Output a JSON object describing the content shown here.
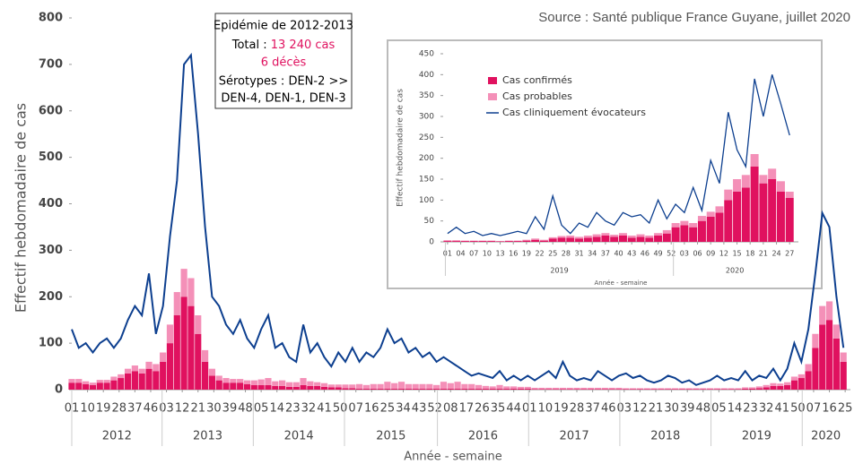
{
  "chart_data": [
    {
      "type": "stacked-bar-line",
      "source": "Source : Santé publique France Guyane, juillet 2020",
      "ylabel": "Effectif hebdomadaire de cas",
      "xlabel": "Année - semaine",
      "annotation": {
        "title": "Epidémie de 2012-2013",
        "total_label": "Total : ",
        "total": "13 240 cas",
        "deaths": "6 décès",
        "serotypes_1": "Sérotypes : DEN-2 >>",
        "serotypes_2": "DEN-4, DEN-1, DEN-3"
      },
      "years": [
        "2012",
        "2013",
        "2014",
        "2015",
        "2016",
        "2017",
        "2018",
        "2019",
        "2020"
      ],
      "x": [
        0,
        4,
        8,
        12,
        16,
        20,
        24,
        28,
        32,
        36,
        40,
        44,
        48,
        52,
        56,
        60,
        64,
        68,
        72,
        76,
        80,
        84,
        88,
        92,
        96,
        100,
        104,
        108,
        112,
        116,
        120,
        124,
        128,
        132,
        136,
        140,
        144,
        148,
        152,
        156,
        160,
        164,
        168,
        172,
        176,
        180,
        184,
        188,
        192,
        196,
        200,
        204,
        208,
        212,
        216,
        220,
        224,
        228,
        232,
        236,
        240,
        244,
        248,
        252,
        256,
        260,
        264,
        268,
        272,
        276,
        280,
        284,
        288,
        292,
        296,
        300,
        304,
        308,
        312,
        316,
        320,
        324,
        328,
        332,
        336,
        340,
        344,
        348,
        352,
        356,
        360,
        364,
        368,
        372,
        376,
        380,
        384,
        388,
        392,
        396,
        400,
        404,
        408,
        412,
        416,
        420,
        424,
        428,
        432,
        436,
        440
      ],
      "series": [
        {
          "color": "#e0115f",
          "kind": "bar",
          "values": [
            15,
            15,
            12,
            10,
            15,
            15,
            20,
            25,
            35,
            40,
            35,
            45,
            40,
            60,
            100,
            160,
            200,
            180,
            120,
            60,
            30,
            20,
            15,
            15,
            15,
            12,
            10,
            10,
            10,
            8,
            8,
            6,
            6,
            10,
            8,
            8,
            6,
            5,
            5,
            3,
            3,
            2,
            2,
            2,
            2,
            2,
            2,
            2,
            2,
            2,
            2,
            2,
            2,
            2,
            2,
            2,
            2,
            2,
            2,
            2,
            2,
            2,
            2,
            2,
            2,
            2,
            1,
            1,
            1,
            1,
            1,
            1,
            1,
            1,
            1,
            1,
            1,
            1,
            1,
            1,
            1,
            1,
            1,
            1,
            1,
            1,
            1,
            1,
            1,
            1,
            1,
            1,
            1,
            1,
            1,
            1,
            2,
            2,
            3,
            5,
            8,
            8,
            10,
            20,
            25,
            40,
            90,
            140,
            150,
            110,
            60
          ]
        },
        {
          "color": "#f490b8",
          "kind": "bar",
          "values": [
            8,
            8,
            6,
            5,
            6,
            6,
            8,
            8,
            10,
            12,
            10,
            15,
            15,
            20,
            40,
            50,
            60,
            60,
            40,
            25,
            15,
            10,
            10,
            8,
            8,
            8,
            10,
            12,
            15,
            10,
            12,
            10,
            10,
            15,
            10,
            8,
            8,
            6,
            6,
            8,
            8,
            10,
            8,
            10,
            10,
            15,
            12,
            15,
            10,
            10,
            10,
            10,
            8,
            15,
            12,
            15,
            10,
            10,
            8,
            6,
            5,
            8,
            5,
            5,
            4,
            4,
            3,
            3,
            3,
            3,
            3,
            3,
            3,
            3,
            3,
            3,
            3,
            3,
            3,
            2,
            2,
            2,
            2,
            2,
            2,
            2,
            2,
            2,
            2,
            2,
            2,
            2,
            2,
            2,
            2,
            2,
            3,
            3,
            4,
            5,
            6,
            5,
            6,
            8,
            8,
            15,
            30,
            40,
            40,
            30,
            20
          ]
        },
        {
          "color": "#0d3f8f",
          "kind": "line",
          "values": [
            130,
            90,
            100,
            80,
            100,
            110,
            90,
            110,
            150,
            180,
            160,
            250,
            120,
            180,
            330,
            450,
            700,
            720,
            550,
            350,
            200,
            180,
            140,
            120,
            150,
            110,
            90,
            130,
            160,
            90,
            100,
            70,
            60,
            140,
            80,
            100,
            70,
            50,
            80,
            60,
            90,
            60,
            80,
            70,
            90,
            130,
            100,
            110,
            80,
            90,
            70,
            80,
            60,
            70,
            60,
            50,
            40,
            30,
            35,
            30,
            25,
            40,
            20,
            30,
            20,
            30,
            20,
            30,
            40,
            25,
            60,
            30,
            20,
            25,
            20,
            40,
            30,
            20,
            30,
            35,
            25,
            30,
            20,
            15,
            20,
            30,
            25,
            15,
            20,
            10,
            15,
            20,
            30,
            20,
            25,
            20,
            40,
            20,
            30,
            25,
            45,
            20,
            45,
            100,
            60,
            130,
            250,
            380,
            350,
            200,
            90
          ]
        }
      ],
      "xlim": [
        0,
        444
      ],
      "ylim": [
        0,
        800
      ],
      "yticks": [
        0,
        100,
        200,
        300,
        400,
        500,
        600,
        700,
        800
      ],
      "xticks": [
        {
          "value": 0,
          "label": "01"
        },
        {
          "value": 9,
          "label": "10"
        },
        {
          "value": 18,
          "label": "19"
        },
        {
          "value": 27,
          "label": "28"
        },
        {
          "value": 36,
          "label": "37"
        },
        {
          "value": 45,
          "label": "46"
        },
        {
          "value": 54,
          "label": "03"
        },
        {
          "value": 63,
          "label": "12"
        },
        {
          "value": 72,
          "label": "21"
        },
        {
          "value": 81,
          "label": "30"
        },
        {
          "value": 90,
          "label": "39"
        },
        {
          "value": 99,
          "label": "48"
        },
        {
          "value": 108,
          "label": "05"
        },
        {
          "value": 117,
          "label": "14"
        },
        {
          "value": 126,
          "label": "23"
        },
        {
          "value": 135,
          "label": "32"
        },
        {
          "value": 144,
          "label": "41"
        },
        {
          "value": 153,
          "label": "50"
        },
        {
          "value": 162,
          "label": "07"
        },
        {
          "value": 171,
          "label": "16"
        },
        {
          "value": 180,
          "label": "25"
        },
        {
          "value": 189,
          "label": "34"
        },
        {
          "value": 198,
          "label": "43"
        },
        {
          "value": 207,
          "label": "52"
        },
        {
          "value": 216,
          "label": "08"
        },
        {
          "value": 225,
          "label": "17"
        },
        {
          "value": 234,
          "label": "26"
        },
        {
          "value": 243,
          "label": "35"
        },
        {
          "value": 252,
          "label": "44"
        },
        {
          "value": 261,
          "label": "01"
        },
        {
          "value": 270,
          "label": "10"
        },
        {
          "value": 279,
          "label": "19"
        },
        {
          "value": 288,
          "label": "28"
        },
        {
          "value": 297,
          "label": "37"
        },
        {
          "value": 306,
          "label": "46"
        },
        {
          "value": 315,
          "label": "03"
        },
        {
          "value": 324,
          "label": "12"
        },
        {
          "value": 333,
          "label": "21"
        },
        {
          "value": 342,
          "label": "30"
        },
        {
          "value": 351,
          "label": "39"
        },
        {
          "value": 360,
          "label": "48"
        },
        {
          "value": 369,
          "label": "05"
        },
        {
          "value": 378,
          "label": "14"
        },
        {
          "value": 387,
          "label": "23"
        },
        {
          "value": 396,
          "label": "32"
        },
        {
          "value": 405,
          "label": "41"
        },
        {
          "value": 414,
          "label": "50"
        },
        {
          "value": 423,
          "label": "07"
        },
        {
          "value": 432,
          "label": "16"
        },
        {
          "value": 441,
          "label": "25"
        }
      ]
    },
    {
      "type": "stacked-bar-line",
      "ylabel": "Effectif hebdomadaire de cas",
      "xlabel": "Année - semaine",
      "years": [
        "2019",
        "2020"
      ],
      "legend": "top-left",
      "x": [
        0,
        2,
        4,
        6,
        8,
        10,
        12,
        14,
        16,
        18,
        20,
        22,
        24,
        26,
        28,
        30,
        32,
        34,
        36,
        38,
        40,
        42,
        44,
        46,
        48,
        50,
        52,
        54,
        56,
        58,
        60,
        62,
        64,
        66,
        68,
        70,
        72,
        74,
        76,
        78
      ],
      "series": [
        {
          "name": "Cas confirmés",
          "color": "#e0115f",
          "kind": "bar",
          "values": [
            2,
            2,
            2,
            2,
            2,
            2,
            1,
            2,
            2,
            3,
            5,
            3,
            8,
            10,
            10,
            8,
            10,
            12,
            15,
            12,
            15,
            10,
            12,
            10,
            15,
            20,
            35,
            40,
            35,
            50,
            60,
            70,
            100,
            120,
            130,
            180,
            140,
            150,
            120,
            105
          ]
        },
        {
          "name": "Cas probables",
          "color": "#f490b8",
          "kind": "bar",
          "values": [
            2,
            2,
            1,
            1,
            1,
            1,
            1,
            1,
            1,
            2,
            3,
            2,
            3,
            4,
            5,
            4,
            5,
            6,
            6,
            5,
            6,
            5,
            6,
            5,
            6,
            8,
            10,
            10,
            10,
            12,
            12,
            15,
            25,
            30,
            30,
            30,
            20,
            25,
            25,
            15
          ]
        },
        {
          "name": "Cas cliniquement évocateurs",
          "color": "#0d3f8f",
          "kind": "line",
          "values": [
            20,
            35,
            20,
            25,
            15,
            20,
            15,
            20,
            25,
            20,
            60,
            30,
            110,
            40,
            20,
            45,
            35,
            70,
            50,
            40,
            70,
            60,
            65,
            45,
            100,
            55,
            90,
            70,
            130,
            75,
            195,
            140,
            310,
            220,
            180,
            390,
            300,
            400,
            330,
            255
          ]
        }
      ],
      "xlim": [
        -1,
        80
      ],
      "ylim": [
        0,
        450
      ],
      "yticks": [
        0,
        50,
        100,
        150,
        200,
        250,
        300,
        350,
        400,
        450
      ],
      "xticks": [
        {
          "value": 0,
          "label": "01"
        },
        {
          "value": 3,
          "label": "04"
        },
        {
          "value": 6,
          "label": "07"
        },
        {
          "value": 9,
          "label": "10"
        },
        {
          "value": 12,
          "label": "13"
        },
        {
          "value": 15,
          "label": "16"
        },
        {
          "value": 18,
          "label": "19"
        },
        {
          "value": 21,
          "label": "22"
        },
        {
          "value": 24,
          "label": "25"
        },
        {
          "value": 27,
          "label": "28"
        },
        {
          "value": 30,
          "label": "31"
        },
        {
          "value": 33,
          "label": "34"
        },
        {
          "value": 36,
          "label": "37"
        },
        {
          "value": 39,
          "label": "40"
        },
        {
          "value": 42,
          "label": "43"
        },
        {
          "value": 45,
          "label": "46"
        },
        {
          "value": 48,
          "label": "49"
        },
        {
          "value": 51,
          "label": "52"
        },
        {
          "value": 54,
          "label": "03"
        },
        {
          "value": 57,
          "label": "06"
        },
        {
          "value": 60,
          "label": "09"
        },
        {
          "value": 63,
          "label": "12"
        },
        {
          "value": 66,
          "label": "15"
        },
        {
          "value": 69,
          "label": "18"
        },
        {
          "value": 72,
          "label": "21"
        },
        {
          "value": 75,
          "label": "24"
        },
        {
          "value": 78,
          "label": "27"
        }
      ]
    }
  ]
}
